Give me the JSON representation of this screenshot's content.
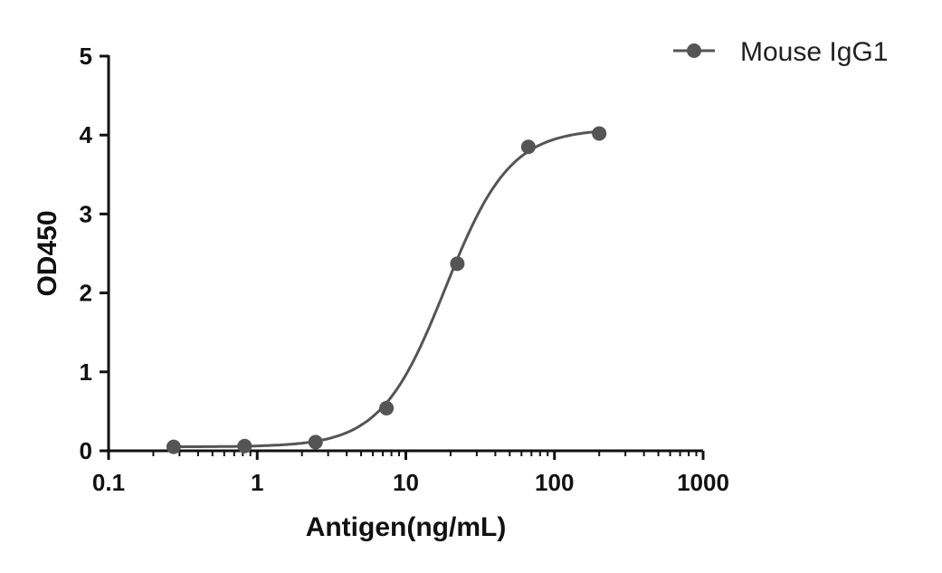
{
  "chart_data": {
    "type": "scatter",
    "title": "",
    "xlabel": "Antigen(ng/mL)",
    "ylabel": "OD450",
    "x_scale": "log",
    "xlim": [
      0.1,
      1000
    ],
    "ylim": [
      0,
      5
    ],
    "x_ticks": [
      0.1,
      1,
      10,
      100,
      1000
    ],
    "x_tick_labels": [
      "0.1",
      "1",
      "10",
      "100",
      "1000"
    ],
    "y_ticks": [
      0,
      1,
      2,
      3,
      4,
      5
    ],
    "y_tick_labels": [
      "0",
      "1",
      "2",
      "3",
      "4",
      "5"
    ],
    "grid": false,
    "legend_position": "top-right",
    "series": [
      {
        "name": "Mouse IgG1",
        "color": "#555555",
        "marker": "circle",
        "fit": "four-parameter logistic",
        "x": [
          0.274,
          0.823,
          2.47,
          7.41,
          22.2,
          66.7,
          200
        ],
        "y": [
          0.05,
          0.06,
          0.11,
          0.54,
          2.37,
          3.85,
          4.02
        ]
      }
    ]
  }
}
